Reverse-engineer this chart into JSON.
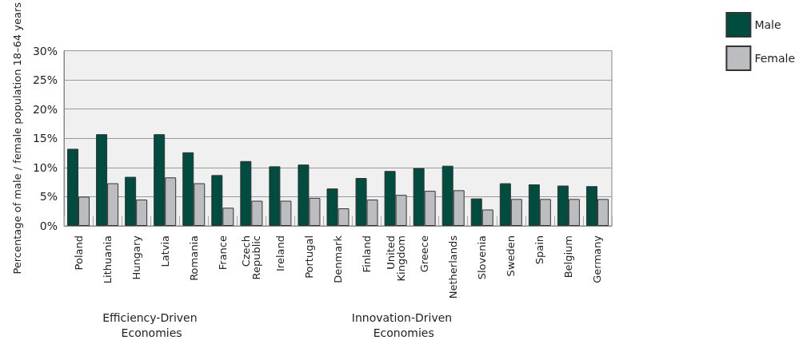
{
  "chart_data": {
    "type": "bar",
    "ylabel": "Percentage of male / female population 18–64 years",
    "categories": [
      "Poland",
      "Lithuania",
      "Hungary",
      "Latvia",
      "Romania",
      "France",
      "Czech Republic",
      "Ireland",
      "Portugal",
      "Denmark",
      "Finland",
      "United Kingdom",
      "Greece",
      "Netherlands",
      "Slovenia",
      "Sweden",
      "Spain",
      "Belgium",
      "Germany"
    ],
    "series": [
      {
        "name": "Male",
        "color": "#004d40",
        "values": [
          13.2,
          15.7,
          8.4,
          15.7,
          12.6,
          8.7,
          11.1,
          10.2,
          10.5,
          6.4,
          8.2,
          9.4,
          9.9,
          10.3,
          4.7,
          7.3,
          7.1,
          6.9,
          6.8
        ]
      },
      {
        "name": "Female",
        "color": "#bcbdc1",
        "values": [
          5.0,
          7.3,
          4.5,
          8.3,
          7.3,
          3.1,
          4.3,
          4.3,
          4.8,
          3.0,
          4.5,
          5.3,
          6.0,
          6.1,
          2.8,
          4.6,
          4.6,
          4.6,
          4.6
        ]
      }
    ],
    "ylim": [
      0,
      30
    ],
    "yticks": [
      {
        "value": 0,
        "label": "0%"
      },
      {
        "value": 5,
        "label": "5%"
      },
      {
        "value": 10,
        "label": "10%"
      },
      {
        "value": 15,
        "label": "15%"
      },
      {
        "value": 20,
        "label": "20%"
      },
      {
        "value": 25,
        "label": "25%"
      },
      {
        "value": 30,
        "label": "30%"
      }
    ],
    "grid": "y",
    "legend": "top right",
    "annotations": [
      "Efficiency-Driven Economies",
      "Innovation-Driven Economies"
    ]
  }
}
